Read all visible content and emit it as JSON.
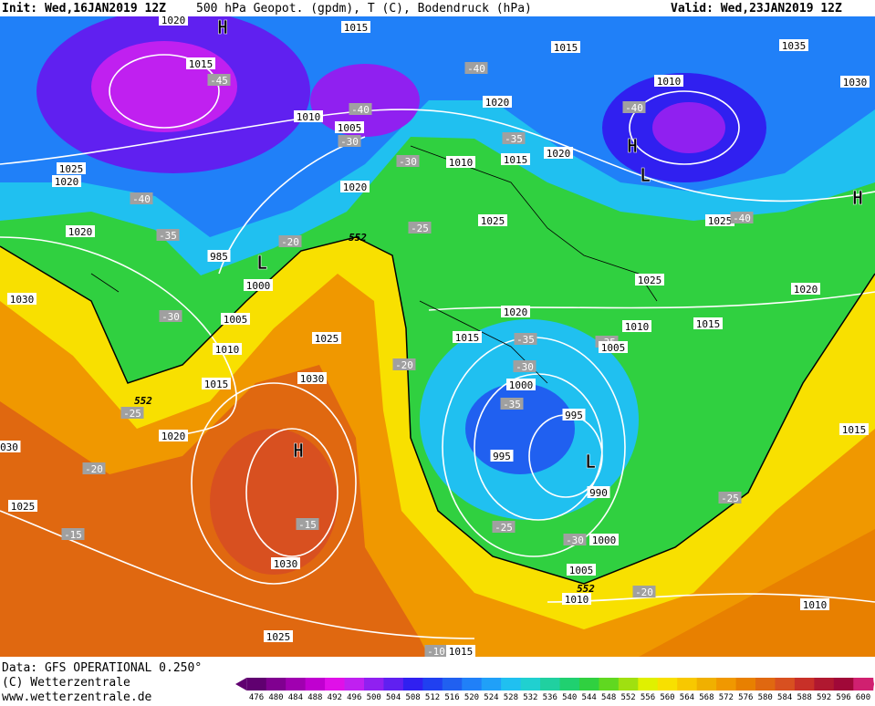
{
  "header": {
    "init": "Init: Wed,16JAN2019 12Z",
    "title": "500 hPa Geopot. (gpdm), T (C), Bodendruck (hPa)",
    "valid": "Valid: Wed,23JAN2019 12Z"
  },
  "footer": {
    "data": "Data: GFS OPERATIONAL 0.250°",
    "copyright": "(C) Wetterzentrale",
    "website": "www.wetterzentrale.de"
  },
  "map_labels": [
    "H",
    "1020",
    "1015",
    "1015",
    "-45",
    "1015",
    "1035",
    "-40",
    "1030",
    "1010",
    "1020",
    "-40",
    "-40",
    "1010",
    "1005",
    "-35",
    "-30",
    "1020",
    "1015",
    "1010",
    "-30",
    "H",
    "L",
    "1025",
    "1020",
    "1020",
    "-40",
    "H",
    "1025",
    "1025",
    "-40",
    "-25",
    "1020",
    "-35",
    "552",
    "-20",
    "985",
    "L",
    "1000",
    "1025",
    "1020",
    "1030",
    "-30",
    "1020",
    "1005",
    "1010",
    "1015",
    "1015",
    "-35",
    "-35",
    "1005",
    "1025",
    "1010",
    "-20",
    "-30",
    "1030",
    "1000",
    "1015",
    "552",
    "-35",
    "-25",
    "995",
    "1020",
    "1015",
    "H",
    "995",
    "030",
    "L",
    "-20",
    "990",
    "-25",
    "1025",
    "-15",
    "-25",
    "-15",
    "-30",
    "1000",
    "1030",
    "1005",
    "552",
    "-20",
    "1010",
    "1010",
    "1025",
    "-10",
    "1015"
  ],
  "colorbar": {
    "levels": [
      476,
      480,
      484,
      488,
      492,
      496,
      500,
      504,
      508,
      512,
      516,
      520,
      524,
      528,
      532,
      536,
      540,
      544,
      548,
      552,
      556,
      560,
      564,
      568,
      572,
      576,
      580,
      584,
      588,
      592,
      596,
      600
    ],
    "colors": [
      "#600070",
      "#800090",
      "#a000b0",
      "#c000d0",
      "#e010e8",
      "#c020f0",
      "#9020f0",
      "#6020f0",
      "#3020f0",
      "#2040f0",
      "#2060f0",
      "#2080f8",
      "#20a0f8",
      "#20c0f0",
      "#20d0d0",
      "#20d0a0",
      "#20d070",
      "#30d040",
      "#60d820",
      "#a0e010",
      "#e0f000",
      "#f8e000",
      "#f8c800",
      "#f0b000",
      "#f09800",
      "#e88000",
      "#e06810",
      "#d85020",
      "#c83028",
      "#b01830",
      "#a00838",
      "#d02070"
    ]
  }
}
